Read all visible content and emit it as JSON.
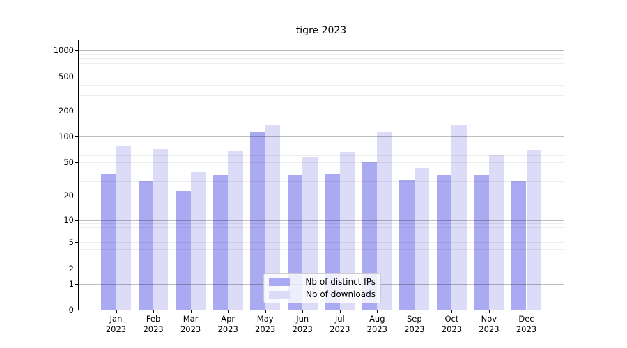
{
  "chart_data": {
    "type": "bar",
    "title": "tigre 2023",
    "categories": [
      "Jan",
      "Feb",
      "Mar",
      "Apr",
      "May",
      "Jun",
      "Jul",
      "Aug",
      "Sep",
      "Oct",
      "Nov",
      "Dec"
    ],
    "x_tick_year": "2023",
    "series": [
      {
        "name": "Nb of distinct IPs",
        "color": "#aaaaf2",
        "values": [
          36,
          30,
          23,
          35,
          115,
          35,
          36,
          50,
          31,
          35,
          35,
          30
        ]
      },
      {
        "name": "Nb of downloads",
        "color": "#dcdcf8",
        "values": [
          77,
          71,
          38,
          68,
          134,
          58,
          65,
          114,
          42,
          137,
          61,
          69
        ]
      }
    ],
    "yscale": "log10(value+1)",
    "ylim": [
      0,
      1300
    ],
    "ytick_labels": [
      0,
      1,
      2,
      5,
      10,
      20,
      50,
      100,
      200,
      500,
      1000
    ],
    "ymajor_gridlines": [
      1,
      10,
      100,
      1000
    ],
    "yminor_gridlines": [
      2,
      3,
      4,
      5,
      6,
      7,
      8,
      9,
      20,
      30,
      40,
      50,
      60,
      70,
      80,
      90,
      200,
      300,
      400,
      500,
      600,
      700,
      800,
      900
    ],
    "legend_position": "lower center",
    "grid": true
  }
}
